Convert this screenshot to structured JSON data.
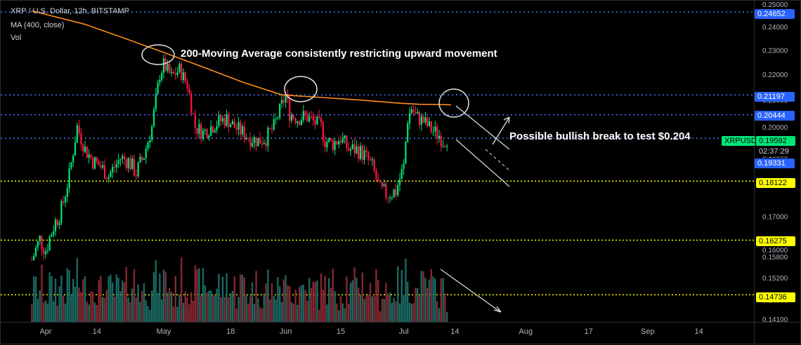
{
  "header": {
    "symbol": "XRP / U.S. Dollar, 12h, BITSTAMP",
    "indicator": "MA (400, close)",
    "volume": "Vol"
  },
  "annotations": {
    "ma_note": "200-Moving Average consistently restricting upward movement",
    "break_note": "Possible bullish break to test $0.204"
  },
  "colors": {
    "up": "#26a69a",
    "up_candle": "#00e676",
    "down_candle": "#ff1744",
    "ma": "#ff8c1a",
    "level_blue": "#4d79ff",
    "level_yellow": "#ffff00",
    "annotation": "#e0e0e0"
  },
  "price_tags": {
    "t_24652": "0.24652",
    "t_21197": "0.21197",
    "t_20444": "0.20444",
    "t_19592": "0.19592",
    "t_countdown": "02:37:29",
    "t_19331": "0.19331",
    "t_18122": "0.18122",
    "t_16275": "0.16275",
    "t_14736": "0.14736",
    "t_symbol": "XRPUSD"
  },
  "chart_data": {
    "type": "candlestick",
    "instrument": "XRP / U.S. Dollar",
    "interval": "12h",
    "exchange": "BITSTAMP",
    "y_axis": {
      "scale": "log",
      "range": [
        0.141,
        0.25
      ],
      "ticks": [
        "0.25000",
        "0.24000",
        "0.23000",
        "0.22000",
        "0.21000",
        "0.20000",
        "0.19000",
        "0.18000",
        "0.17000",
        "0.16000",
        "0.15800",
        "0.15200",
        "0.14600",
        "0.14100"
      ],
      "tick_values": [
        0.25,
        0.24,
        0.23,
        0.22,
        0.21,
        0.2,
        0.19,
        0.18,
        0.17,
        0.16,
        0.158,
        0.152,
        0.146,
        0.141
      ]
    },
    "x_axis": {
      "ticks": [
        "Apr",
        "14",
        "May",
        "18",
        "Jun",
        "15",
        "Jul",
        "14",
        "Aug",
        "17",
        "Sep",
        "14"
      ],
      "tick_days": [
        0,
        13,
        30,
        47,
        61,
        75,
        91,
        104,
        122,
        138,
        153,
        166
      ]
    },
    "levels": [
      {
        "value": 0.24652,
        "color": "blue"
      },
      {
        "value": 0.21197,
        "color": "blue"
      },
      {
        "value": 0.20444,
        "color": "blue"
      },
      {
        "value": 0.19592,
        "color": "blue"
      },
      {
        "value": 0.18122,
        "color": "yellow"
      },
      {
        "value": 0.16275,
        "color": "yellow"
      },
      {
        "value": 0.14736,
        "color": "yellow"
      }
    ],
    "close_path": [
      [
        -3.5,
        0.157
      ],
      [
        -1.5,
        0.163
      ],
      [
        0,
        0.16
      ],
      [
        2,
        0.167
      ],
      [
        4,
        0.172
      ],
      [
        6,
        0.183
      ],
      [
        8,
        0.2
      ],
      [
        9,
        0.196
      ],
      [
        10,
        0.192
      ],
      [
        12,
        0.188
      ],
      [
        14,
        0.186
      ],
      [
        16,
        0.183
      ],
      [
        17,
        0.185
      ],
      [
        19,
        0.189
      ],
      [
        21,
        0.188
      ],
      [
        23,
        0.184
      ],
      [
        25,
        0.19
      ],
      [
        27,
        0.2
      ],
      [
        28,
        0.21
      ],
      [
        29,
        0.22
      ],
      [
        30,
        0.224
      ],
      [
        32,
        0.219
      ],
      [
        34,
        0.222
      ],
      [
        36,
        0.216
      ],
      [
        38,
        0.2
      ],
      [
        40,
        0.198
      ],
      [
        42,
        0.2
      ],
      [
        44,
        0.202
      ],
      [
        46,
        0.203
      ],
      [
        48,
        0.2
      ],
      [
        50,
        0.198
      ],
      [
        52,
        0.196
      ],
      [
        54,
        0.195
      ],
      [
        56,
        0.196
      ],
      [
        58,
        0.2
      ],
      [
        60,
        0.208
      ],
      [
        61,
        0.212
      ],
      [
        62,
        0.205
      ],
      [
        64,
        0.203
      ],
      [
        66,
        0.204
      ],
      [
        68,
        0.202
      ],
      [
        70,
        0.2
      ],
      [
        71,
        0.195
      ],
      [
        73,
        0.194
      ],
      [
        75,
        0.196
      ],
      [
        77,
        0.192
      ],
      [
        79,
        0.192
      ],
      [
        81,
        0.19
      ],
      [
        83,
        0.186
      ],
      [
        85,
        0.178
      ],
      [
        87,
        0.177
      ],
      [
        89,
        0.178
      ],
      [
        91,
        0.186
      ],
      [
        92,
        0.203
      ],
      [
        93,
        0.207
      ],
      [
        94,
        0.204
      ],
      [
        96,
        0.202
      ],
      [
        98,
        0.199
      ],
      [
        100,
        0.197
      ],
      [
        101,
        0.195
      ],
      [
        102,
        0.196
      ]
    ],
    "moving_average_400": [
      [
        -3.5,
        0.247
      ],
      [
        10,
        0.241
      ],
      [
        20,
        0.235
      ],
      [
        30,
        0.229
      ],
      [
        40,
        0.223
      ],
      [
        50,
        0.217
      ],
      [
        60,
        0.212
      ],
      [
        70,
        0.211
      ],
      [
        80,
        0.21
      ],
      [
        90,
        0.2088
      ],
      [
        95,
        0.2084
      ],
      [
        103,
        0.2082
      ]
    ],
    "last_price": 0.19592
  }
}
